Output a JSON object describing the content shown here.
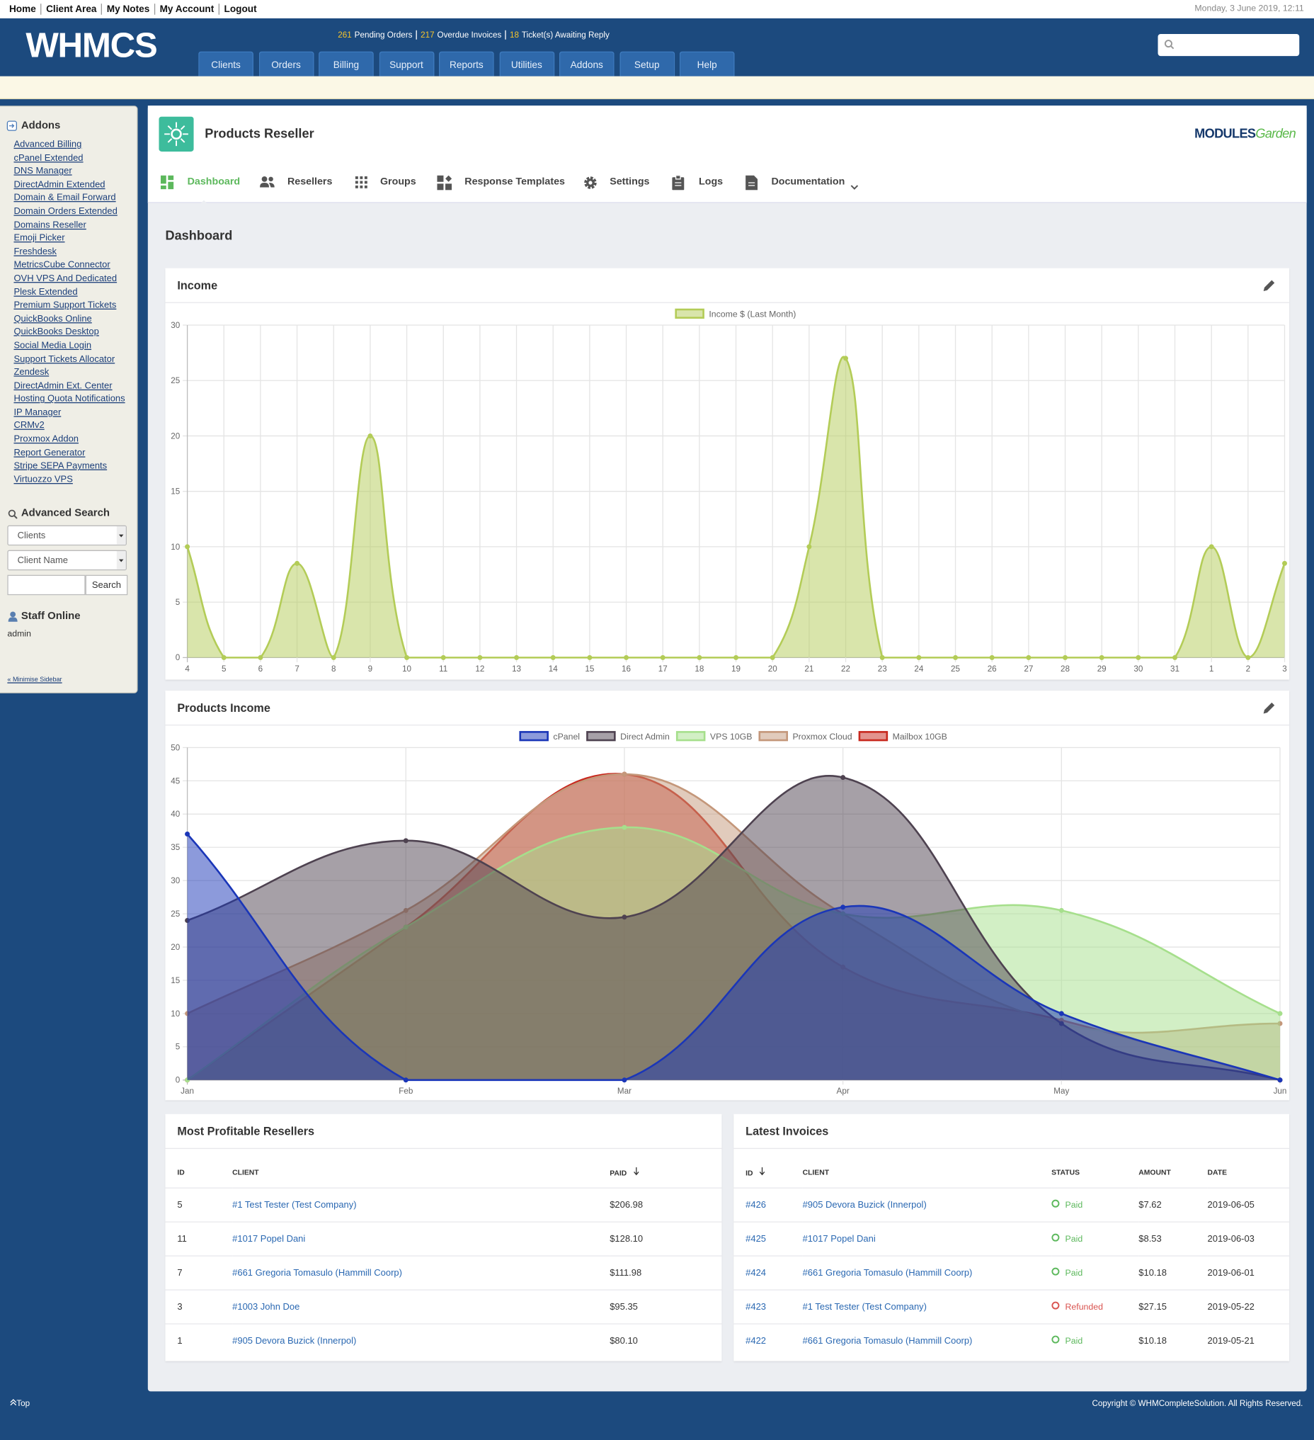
{
  "top_links": [
    "Home",
    "Client Area",
    "My Notes",
    "My Account",
    "Logout"
  ],
  "date": "Monday, 3 June 2019, 12:11",
  "logo": "WHMCS",
  "stats": [
    {
      "count": 261,
      "label": "Pending Orders"
    },
    {
      "count": 217,
      "label": "Overdue Invoices"
    },
    {
      "count": 18,
      "label": "Ticket(s) Awaiting Reply"
    }
  ],
  "menu": [
    "Clients",
    "Orders",
    "Billing",
    "Support",
    "Reports",
    "Utilities",
    "Addons",
    "Setup",
    "Help"
  ],
  "sidebar": {
    "addons_title": "Addons",
    "addons": [
      "Advanced Billing",
      "cPanel Extended",
      "DNS Manager",
      "DirectAdmin Extended",
      "Domain & Email Forward",
      "Domain Orders Extended",
      "Domains Reseller",
      "Emoji Picker",
      "Freshdesk",
      "MetricsCube Connector",
      "OVH VPS And Dedicated",
      "Plesk Extended",
      "Premium Support Tickets",
      "QuickBooks Online",
      "QuickBooks Desktop",
      "Social Media Login",
      "Support Tickets Allocator",
      "Zendesk",
      "DirectAdmin Ext. Center",
      "Hosting Quota Notifications",
      "IP Manager",
      "CRMv2",
      "Proxmox Addon",
      "Report Generator",
      "Stripe SEPA Payments",
      "Virtuozzo VPS"
    ],
    "search_title": "Advanced Search",
    "search_type": "Clients",
    "search_field": "Client Name",
    "search_button": "Search",
    "staff_title": "Staff Online",
    "staff": [
      "admin"
    ],
    "minimise": "« Minimise Sidebar"
  },
  "module": {
    "title": "Products Reseller",
    "brand": [
      "MODULES",
      "Garden"
    ],
    "tabs": [
      "Dashboard",
      "Resellers",
      "Groups",
      "Response Templates",
      "Settings",
      "Logs",
      "Documentation"
    ],
    "active_tab": 0
  },
  "page_title": "Dashboard",
  "chart_data": [
    {
      "type": "line",
      "fill": true,
      "title": "Income",
      "categories": [
        "4",
        "5",
        "6",
        "7",
        "8",
        "9",
        "10",
        "11",
        "12",
        "13",
        "14",
        "15",
        "16",
        "17",
        "18",
        "19",
        "20",
        "21",
        "22",
        "23",
        "24",
        "25",
        "26",
        "27",
        "28",
        "29",
        "30",
        "31",
        "1",
        "2",
        "3"
      ],
      "series": [
        {
          "name": "Income $ (Last Month)",
          "color": "#b3cc57",
          "values": [
            10,
            0,
            0,
            8.5,
            0,
            20,
            0,
            0,
            0,
            0,
            0,
            0,
            0,
            0,
            0,
            0,
            0,
            10,
            27,
            0,
            0,
            0,
            0,
            0,
            0,
            0,
            0,
            0,
            10,
            0,
            8.5
          ]
        }
      ],
      "ylim": [
        0,
        30
      ],
      "yticks": [
        0,
        5,
        10,
        15,
        20,
        25,
        30
      ],
      "grid": true,
      "legend": "top"
    },
    {
      "type": "line",
      "fill": true,
      "title": "Products Income",
      "categories": [
        "Jan",
        "Feb",
        "Mar",
        "Apr",
        "May",
        "Jun"
      ],
      "series": [
        {
          "name": "cPanel",
          "color": "#1a36b8",
          "values": [
            37,
            0,
            0,
            26,
            10,
            0
          ]
        },
        {
          "name": "Direct Admin",
          "color": "#4e4250",
          "values": [
            24,
            36,
            24.5,
            45.5,
            8.5,
            0
          ]
        },
        {
          "name": "VPS 10GB",
          "color": "#a6df8c",
          "values": [
            0,
            23,
            38,
            25,
            25.5,
            10
          ]
        },
        {
          "name": "Proxmox Cloud",
          "color": "#c4977a",
          "values": [
            10,
            25.5,
            46,
            25,
            8.5,
            8.5
          ]
        },
        {
          "name": "Mailbox 10GB",
          "color": "#c8281e",
          "values": [
            0,
            23,
            46,
            17,
            9,
            0
          ]
        }
      ],
      "ylim": [
        0,
        50
      ],
      "yticks": [
        0,
        5,
        10,
        15,
        20,
        25,
        30,
        35,
        40,
        45,
        50
      ],
      "grid": true,
      "legend": "top"
    }
  ],
  "tables": [
    {
      "title": "Most Profitable Resellers",
      "columns": [
        "ID",
        "CLIENT",
        "PAID"
      ],
      "sort_column": 2,
      "rows": [
        [
          "5",
          "#1 Test Tester (Test Company)",
          "$206.98"
        ],
        [
          "11",
          "#1017 Popel Dani",
          "$128.10"
        ],
        [
          "7",
          "#661 Gregoria Tomasulo (Hammill Coorp)",
          "$111.98"
        ],
        [
          "3",
          "#1003 John Doe",
          "$95.35"
        ],
        [
          "1",
          "#905 Devora Buzick (Innerpol)",
          "$80.10"
        ]
      ]
    },
    {
      "title": "Latest Invoices",
      "columns": [
        "ID",
        "CLIENT",
        "STATUS",
        "AMOUNT",
        "DATE"
      ],
      "sort_column": 0,
      "status_colors": {
        "Paid": "#5cb85c",
        "Refunded": "#d9534f"
      },
      "rows": [
        [
          "#426",
          "#905 Devora Buzick (Innerpol)",
          "Paid",
          "$7.62",
          "2019-06-05"
        ],
        [
          "#425",
          "#1017 Popel Dani",
          "Paid",
          "$8.53",
          "2019-06-03"
        ],
        [
          "#424",
          "#661 Gregoria Tomasulo (Hammill Coorp)",
          "Paid",
          "$10.18",
          "2019-06-01"
        ],
        [
          "#423",
          "#1 Test Tester (Test Company)",
          "Refunded",
          "$27.15",
          "2019-05-22"
        ],
        [
          "#422",
          "#661 Gregoria Tomasulo (Hammill Coorp)",
          "Paid",
          "$10.18",
          "2019-05-21"
        ]
      ]
    }
  ],
  "footer": {
    "top": "Top",
    "copyright": "Copyright © WHMCompleteSolution. All Rights Reserved."
  }
}
